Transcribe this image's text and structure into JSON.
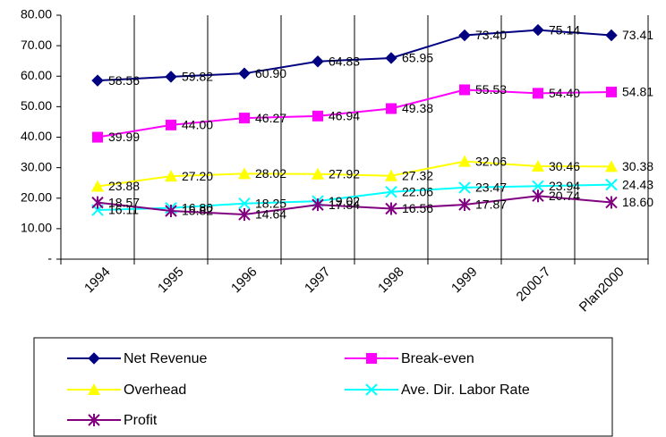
{
  "chart_data": {
    "type": "line",
    "categories": [
      "1994",
      "1995",
      "1996",
      "1997",
      "1998",
      "1999",
      "2000-7",
      "Plan2000"
    ],
    "ylim": [
      0,
      80
    ],
    "yticks": [
      {
        "value": 0,
        "label": "-"
      },
      {
        "value": 10,
        "label": "10.00"
      },
      {
        "value": 20,
        "label": "20.00"
      },
      {
        "value": 30,
        "label": "30.00"
      },
      {
        "value": 40,
        "label": "40.00"
      },
      {
        "value": 50,
        "label": "50.00"
      },
      {
        "value": 60,
        "label": "60.00"
      },
      {
        "value": 70,
        "label": "70.00"
      },
      {
        "value": 80,
        "label": "80.00"
      }
    ],
    "grid": "vertical",
    "series": [
      {
        "name": "Net Revenue",
        "color": "#000080",
        "marker": "diamond",
        "values": [
          58.56,
          59.82,
          60.9,
          64.83,
          65.95,
          73.4,
          75.14,
          73.41
        ],
        "value_labels": [
          "58.56",
          "59.82",
          "60.90",
          "64.83",
          "65.95",
          "73.40",
          "75.14",
          "73.41"
        ]
      },
      {
        "name": "Break-even",
        "color": "#ff00ff",
        "marker": "square",
        "values": [
          39.99,
          44.0,
          46.27,
          46.94,
          49.38,
          55.53,
          54.4,
          54.81
        ],
        "value_labels": [
          "39.99",
          "44.00",
          "46.27",
          "46.94",
          "49.38",
          "55.53",
          "54.40",
          "54.81"
        ]
      },
      {
        "name": "Overhead",
        "color": "#ffff00",
        "marker": "triangle",
        "values": [
          23.88,
          27.2,
          28.02,
          27.92,
          27.32,
          32.06,
          30.46,
          30.38
        ],
        "value_labels": [
          "23.88",
          "27.20",
          "28.02",
          "27.92",
          "27.32",
          "32.06",
          "30.46",
          "30.38"
        ]
      },
      {
        "name": "Ave. Dir. Labor Rate",
        "color": "#00ffff",
        "marker": "x",
        "values": [
          16.11,
          16.8,
          18.25,
          19.02,
          22.06,
          23.47,
          23.94,
          24.43
        ],
        "value_labels": [
          "16.11",
          "16.80",
          "18.25",
          "19.02",
          "22.06",
          "23.47",
          "23.94",
          "24.43"
        ]
      },
      {
        "name": "Profit",
        "color": "#800080",
        "marker": "star",
        "values": [
          18.57,
          15.82,
          14.64,
          17.84,
          16.56,
          17.87,
          20.74,
          18.6
        ],
        "value_labels": [
          "18.57",
          "15.82",
          "14.64",
          "17.84",
          "16.56",
          "17.87",
          "20.74",
          "18.60"
        ]
      }
    ]
  }
}
